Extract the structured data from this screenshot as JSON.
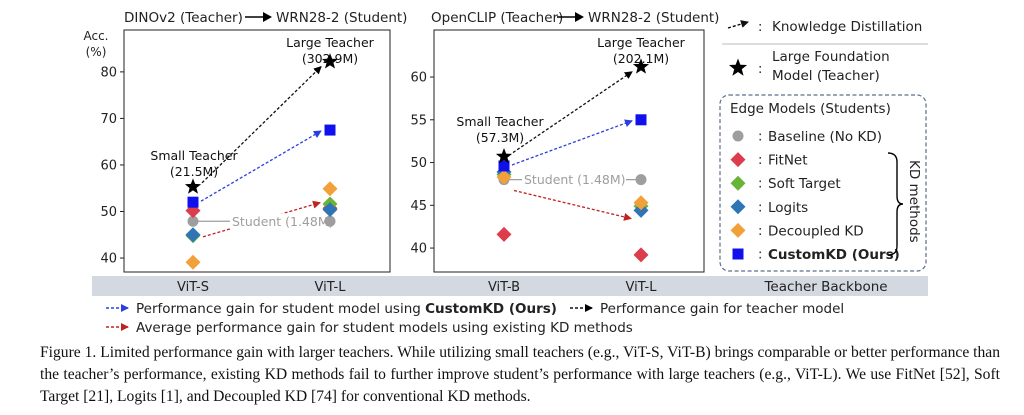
{
  "chart_data": [
    {
      "type": "scatter",
      "title": "DINOv2 (Teacher) → WRN28-2 (Student)",
      "title_teacher": "DINOv2 (Teacher)",
      "title_student": "WRN28-2 (Student)",
      "ylabel": "Acc. (%)",
      "ylabel_line1": "Acc.",
      "ylabel_line2": "(%)",
      "ylim": [
        37,
        89
      ],
      "yticks": [
        "40",
        "50",
        "60",
        "70",
        "80"
      ],
      "categories": [
        "ViT-S",
        "ViT-L"
      ],
      "series": [
        {
          "name": "Baseline (No KD)",
          "values": [
            47.9,
            47.9
          ]
        },
        {
          "name": "FitNet",
          "values": [
            50.2,
            50.7
          ]
        },
        {
          "name": "Soft Target",
          "values": [
            44.8,
            51.6
          ]
        },
        {
          "name": "Logits",
          "values": [
            45.0,
            50.4
          ]
        },
        {
          "name": "Decoupled KD",
          "values": [
            39.1,
            54.9
          ]
        },
        {
          "name": "CustomKD (Ours)",
          "values": [
            52.0,
            67.5
          ]
        },
        {
          "name": "Large Foundation Model (Teacher)",
          "values": [
            55.3,
            82.2
          ]
        }
      ],
      "annotations": {
        "small_teacher_1": "Small Teacher",
        "small_teacher_2": "(21.5M)",
        "large_teacher_1": "Large Teacher",
        "large_teacher_2": "(302.9M)",
        "student": "Student (1.48M)"
      }
    },
    {
      "type": "scatter",
      "title": "OpenCLIP (Teacher) → WRN28-2 (Student)",
      "title_teacher": "OpenCLIP (Teacher)",
      "title_student": "WRN28-2 (Student)",
      "ylim": [
        37.2,
        65.5
      ],
      "yticks": [
        "40",
        "45",
        "50",
        "55",
        "60"
      ],
      "categories": [
        "ViT-B",
        "ViT-L"
      ],
      "series": [
        {
          "name": "Baseline (No KD)",
          "values": [
            48.0,
            48.0
          ]
        },
        {
          "name": "FitNet",
          "values": [
            41.6,
            39.2
          ]
        },
        {
          "name": "Soft Target",
          "values": [
            48.6,
            44.9
          ]
        },
        {
          "name": "Logits",
          "values": [
            48.9,
            44.4
          ]
        },
        {
          "name": "Decoupled KD",
          "values": [
            48.3,
            45.3
          ]
        },
        {
          "name": "CustomKD (Ours)",
          "values": [
            49.6,
            55.0
          ]
        },
        {
          "name": "Large Foundation Model (Teacher)",
          "values": [
            50.7,
            61.2
          ]
        }
      ],
      "annotations": {
        "small_teacher_1": "Small Teacher",
        "small_teacher_2": "(57.3M)",
        "large_teacher_1": "Large Teacher",
        "large_teacher_2": "(202.1M)",
        "student": "Student (1.48M)"
      }
    }
  ],
  "legend": {
    "kd_arrow": "Knowledge Distillation",
    "teacher_line1": "Large Foundation",
    "teacher_line2": "Model (Teacher)",
    "edge_title": "Edge Models (Students)",
    "items": [
      "Baseline (No KD)",
      "FitNet",
      "Soft Target",
      "Logits",
      "Decoupled KD",
      "CustomKD (Ours)"
    ],
    "kd_methods": "KD methods",
    "backbone": "Teacher Backbone",
    "gain_customkd_prefix": "Performance gain for student model using ",
    "gain_customkd_bold": "CustomKD (Ours)",
    "gain_teacher": "Performance gain for teacher model",
    "gain_existing": "Average performance gain for student models using existing KD methods"
  },
  "colors": {
    "baseline": "#9e9e9e",
    "fitnet": "#dc3c4b",
    "soft": "#69b436",
    "logits": "#2f75b5",
    "dkd": "#f2a13a",
    "custom": "#1010ee",
    "teacher": "#000000",
    "blue_arrow": "#2b3fe0",
    "red_arrow": "#c02222",
    "box_border": "#5a6f8c",
    "band": "#d4d8e0"
  },
  "caption": {
    "label": "Figure 1.",
    "text": "Limited performance gain with larger teachers. While utilizing small teachers (e.g., ViT-S, ViT-B) brings comparable or better performance than the teacher’s performance, existing KD methods fail to further improve student’s performance with large teachers (e.g., ViT-L). We use FitNet [52], Soft Target [21], Logits [1], and Decoupled KD [74] for conventional KD methods."
  }
}
